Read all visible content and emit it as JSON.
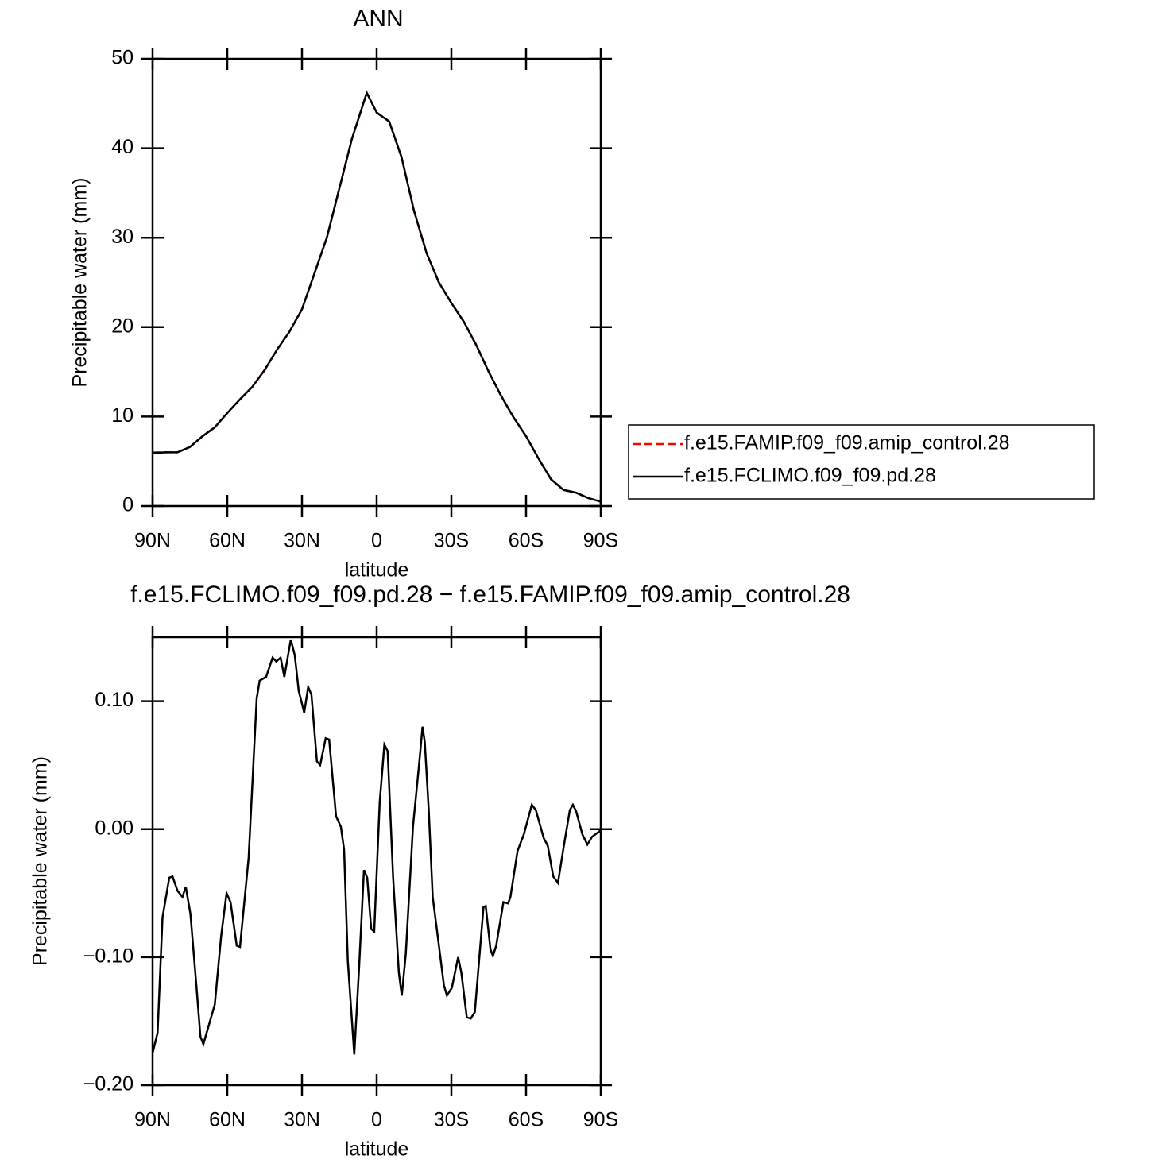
{
  "chart_data": [
    {
      "type": "line",
      "title": "ANN",
      "y_label": "Precipitable water (mm)",
      "x_label": "latitude",
      "xlim": [
        90,
        -90
      ],
      "ylim": [
        0,
        50
      ],
      "xticks": [
        {
          "value": 90,
          "label": "90N"
        },
        {
          "value": 60,
          "label": "60N"
        },
        {
          "value": 30,
          "label": "30N"
        },
        0,
        {
          "value": -30,
          "label": "30S"
        },
        {
          "value": -60,
          "label": "60S"
        },
        {
          "value": -90,
          "label": "90S"
        }
      ],
      "yticks": [
        0,
        10,
        20,
        30,
        40,
        50
      ],
      "legend": "outside-right",
      "x": [
        90,
        85,
        80,
        75,
        70,
        65,
        60,
        55,
        50,
        45,
        40,
        35,
        30,
        25,
        20,
        15,
        10,
        5,
        4,
        0,
        -5,
        -10,
        -15,
        -20,
        -25,
        -30,
        -35,
        -40,
        -45,
        -50,
        -55,
        -60,
        -65,
        -70,
        -75,
        -80,
        -85,
        -90
      ],
      "series": [
        {
          "name": "f.e15.FAMIP.f09_f09.amip_control.28",
          "color": "#ff0000",
          "line_style": "dashed",
          "values": [
            6.0,
            6.0,
            6.0,
            6.6,
            7.8,
            8.8,
            10.4,
            11.9,
            13.3,
            15.2,
            17.5,
            19.5,
            22.0,
            26.0,
            30.0,
            35.5,
            41.0,
            45.3,
            46.2,
            44.0,
            43.0,
            39.0,
            33.0,
            28.3,
            25.0,
            22.7,
            20.6,
            18.0,
            15.0,
            12.3,
            9.9,
            7.8,
            5.3,
            3.0,
            1.8,
            1.5,
            0.9,
            0.5
          ]
        },
        {
          "name": "f.e15.FCLIMO.f09_f09.pd.28",
          "color": "#000000",
          "line_style": "solid",
          "values": [
            5.9,
            6.0,
            6.0,
            6.6,
            7.8,
            8.8,
            10.4,
            11.9,
            13.3,
            15.2,
            17.5,
            19.5,
            22.0,
            26.0,
            30.0,
            35.5,
            41.0,
            45.3,
            46.2,
            44.0,
            43.0,
            39.0,
            33.0,
            28.3,
            25.0,
            22.7,
            20.6,
            18.0,
            15.0,
            12.3,
            9.9,
            7.8,
            5.3,
            3.0,
            1.8,
            1.5,
            0.9,
            0.5
          ]
        }
      ]
    },
    {
      "type": "line",
      "title": "f.e15.FCLIMO.f09_f09.pd.28 − f.e15.FAMIP.f09_f09.amip_control.28",
      "y_label": "Precipitable water (mm)",
      "x_label": "latitude",
      "xlim": [
        90,
        -90
      ],
      "ylim": [
        -0.2,
        0.15
      ],
      "xticks": [
        {
          "value": 90,
          "label": "90N"
        },
        {
          "value": 60,
          "label": "60N"
        },
        {
          "value": 30,
          "label": "30N"
        },
        0,
        {
          "value": -30,
          "label": "30S"
        },
        {
          "value": -60,
          "label": "60S"
        },
        {
          "value": -90,
          "label": "90S"
        }
      ],
      "yticks": [
        {
          "value": -0.2,
          "label": "−0.20"
        },
        {
          "value": -0.1,
          "label": "−0.10"
        },
        {
          "value": 0,
          "label": "0.00"
        },
        {
          "value": 0.1,
          "label": "0.10"
        }
      ],
      "color": "#000000",
      "x": [
        90,
        88,
        86,
        83.3,
        82,
        80,
        78,
        76.7,
        74.8,
        72.4,
        70.8,
        69.6,
        65,
        62.5,
        60.3,
        58.7,
        56.2,
        54.9,
        51.4,
        48.2,
        47,
        44.4,
        41.8,
        40.3,
        38.6,
        37.1,
        34.5,
        32.9,
        31.3,
        29.1,
        27.5,
        26.2,
        24,
        22.7,
        20.5,
        19.1,
        16.3,
        14.4,
        13.1,
        11.6,
        9,
        7.1,
        5.1,
        3.8,
        2.2,
        1,
        -1.2,
        -3.1,
        -4.4,
        -6.6,
        -8.9,
        -10.1,
        -11.7,
        -14.6,
        -17.1,
        -18.4,
        -19.3,
        -20.9,
        -22.5,
        -24.8,
        -27,
        -28.2,
        -30.2,
        -32.7,
        -34,
        -36.2,
        -37.8,
        -39.4,
        -42.9,
        -43.8,
        -45.7,
        -46.7,
        -48,
        -50.9,
        -52.8,
        -53.7,
        -56.6,
        -59.1,
        -62.3,
        -63.9,
        -67.1,
        -68.7,
        -70.9,
        -72.8,
        -75,
        -77.6,
        -78.8,
        -80.1,
        -82.6,
        -84.6,
        -86.5,
        -90
      ],
      "values": [
        -0.175,
        -0.159,
        -0.069,
        -0.038,
        -0.037,
        -0.048,
        -0.053,
        -0.045,
        -0.066,
        -0.122,
        -0.162,
        -0.168,
        -0.137,
        -0.084,
        -0.05,
        -0.057,
        -0.091,
        -0.092,
        -0.022,
        0.102,
        0.116,
        0.119,
        0.134,
        0.131,
        0.134,
        0.119,
        0.148,
        0.136,
        0.108,
        0.091,
        0.111,
        0.105,
        0.053,
        0.05,
        0.071,
        0.07,
        0.01,
        0.002,
        -0.016,
        -0.103,
        -0.176,
        -0.109,
        -0.032,
        -0.038,
        -0.078,
        -0.08,
        0.021,
        0.066,
        0.061,
        -0.038,
        -0.112,
        -0.13,
        -0.097,
        0.002,
        0.052,
        0.08,
        0.068,
        0.015,
        -0.053,
        -0.088,
        -0.122,
        -0.13,
        -0.124,
        -0.1,
        -0.112,
        -0.147,
        -0.148,
        -0.143,
        -0.061,
        -0.06,
        -0.094,
        -0.099,
        -0.091,
        -0.057,
        -0.058,
        -0.053,
        -0.017,
        -0.004,
        0.019,
        0.015,
        -0.007,
        -0.013,
        -0.037,
        -0.042,
        -0.015,
        0.015,
        0.019,
        0.014,
        -0.004,
        -0.012,
        -0.006,
        -0.001
      ]
    }
  ]
}
